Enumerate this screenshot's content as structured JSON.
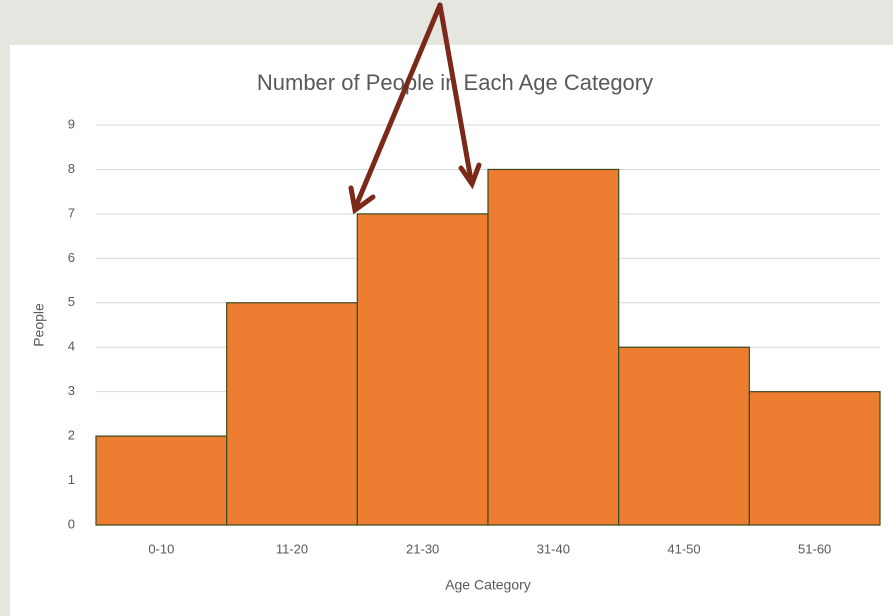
{
  "chart_data": {
    "type": "bar",
    "title": "Number of People in Each Age Category",
    "x_label": "Age Category",
    "y_label": "People",
    "categories": [
      "0-10",
      "11-20",
      "21-30",
      "31-40",
      "41-50",
      "51-60"
    ],
    "values": [
      2,
      5,
      7,
      8,
      4,
      3
    ],
    "color": "#ed7d31",
    "ylim": [
      0,
      9
    ],
    "yticks": [
      0,
      1,
      2,
      3,
      4,
      5,
      6,
      7,
      8,
      9
    ],
    "grid": true
  }
}
